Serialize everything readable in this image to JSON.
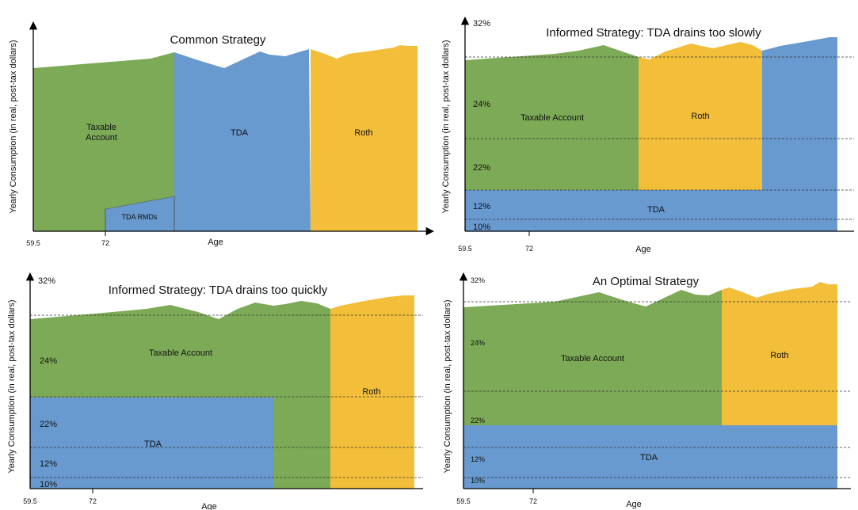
{
  "colors": {
    "taxable": "#7DAA57",
    "tda": "#6899CF",
    "roth": "#F3BE3A",
    "axis": "#000000"
  },
  "y_axis_label": "Yearly Consumption (in real, post-tax dollars)",
  "x_axis_label": "Age",
  "ticks": {
    "start": "59.5",
    "rmd": "72"
  },
  "panels": [
    {
      "title": "Common Strategy",
      "labels": {
        "taxable": "Taxable\nAccount",
        "tda": "TDA",
        "roth": "Roth",
        "tda_rmds": "TDA RMDs"
      }
    },
    {
      "title": "Informed Strategy: TDA drains too slowly",
      "labels": {
        "taxable": "Taxable Account",
        "roth": "Roth",
        "tda": "TDA"
      },
      "brackets": [
        "32%",
        "24%",
        "22%",
        "12%",
        "10%"
      ]
    },
    {
      "title": "Informed Strategy: TDA drains too quickly",
      "labels": {
        "taxable": "Taxable Account",
        "roth": "Roth",
        "tda": "TDA"
      },
      "brackets": [
        "32%",
        "24%",
        "22%",
        "12%",
        "10%"
      ]
    },
    {
      "title": "An Optimal Strategy",
      "labels": {
        "taxable": "Taxable Account",
        "roth": "Roth",
        "tda": "TDA"
      },
      "brackets": [
        "32%",
        "24%",
        "22%",
        "12%",
        "10%"
      ]
    }
  ]
}
